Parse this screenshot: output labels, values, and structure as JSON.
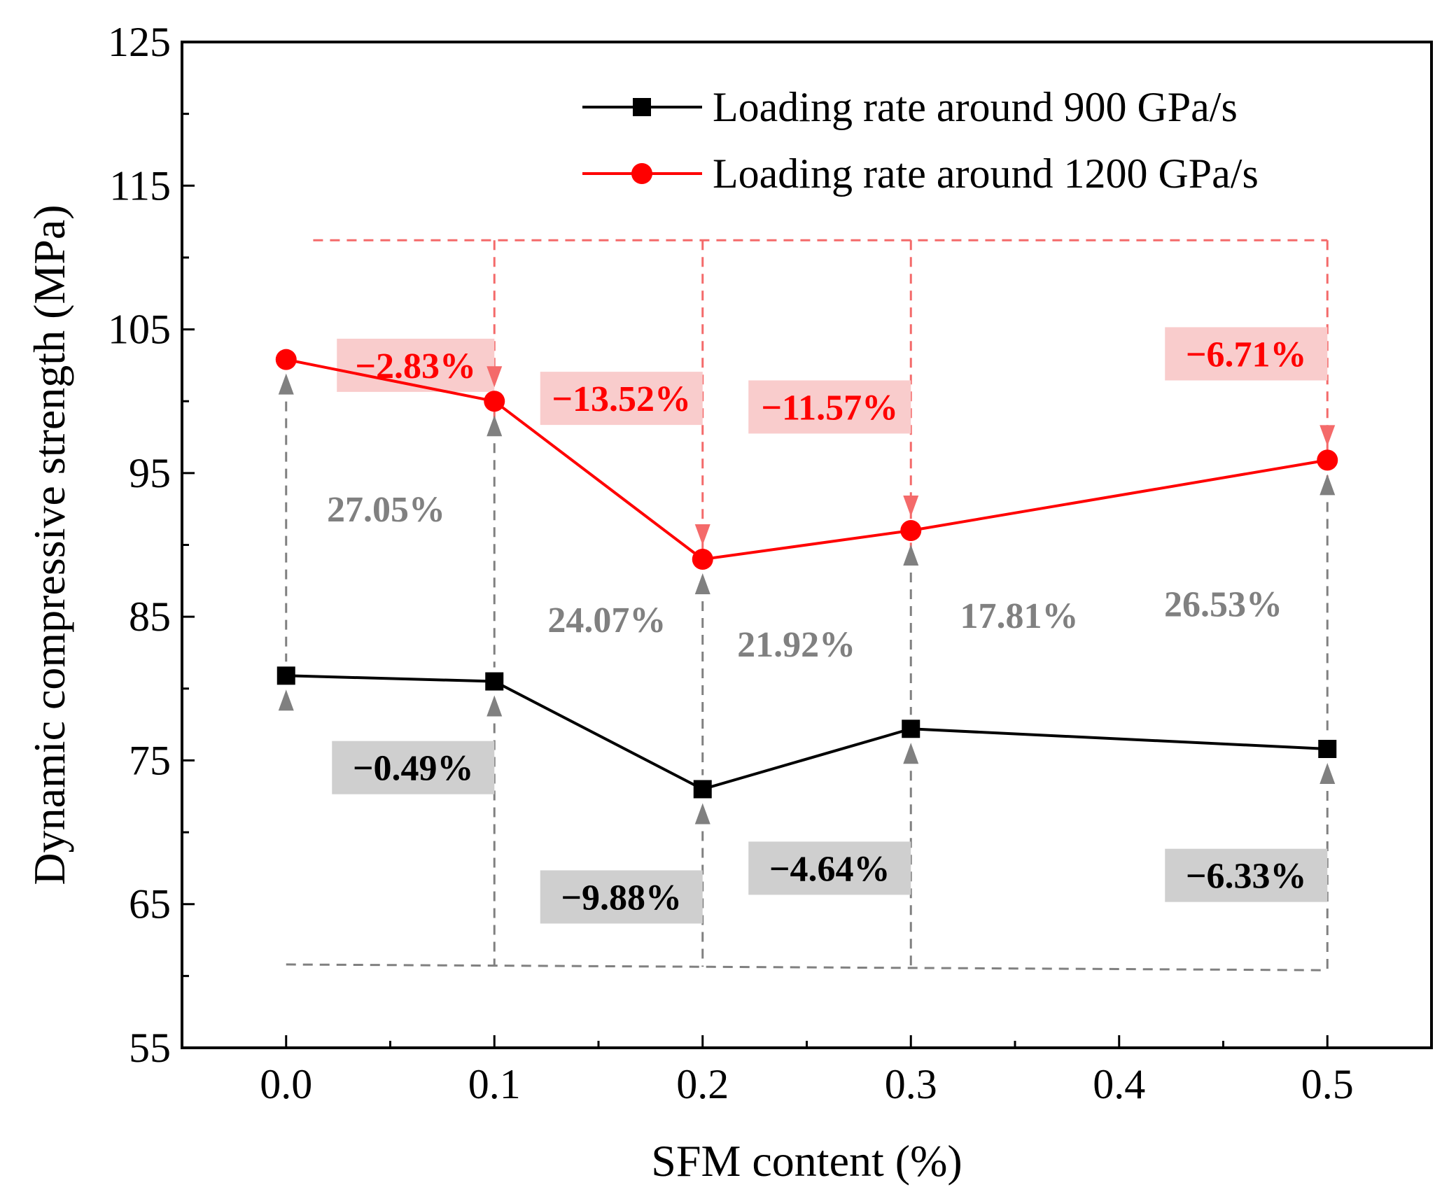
{
  "chart_data": {
    "type": "line",
    "title": "",
    "xlabel": "SFM content (%)",
    "ylabel": "Dynamic compressive strength (MPa)",
    "xlim": [
      -0.05,
      0.55
    ],
    "ylim": [
      55,
      125
    ],
    "xticks": [
      "0.0",
      "0.1",
      "0.2",
      "0.3",
      "0.4",
      "0.5"
    ],
    "yticks": [
      "55",
      "65",
      "75",
      "85",
      "95",
      "105",
      "115",
      "125"
    ],
    "legend_position": "top-right",
    "series": [
      {
        "name": "Loading rate around 900 GPa/s",
        "color": "#000000",
        "marker": "square",
        "x": [
          0.0,
          0.1,
          0.2,
          0.3,
          0.5
        ],
        "values": [
          80.9,
          80.5,
          73.0,
          77.2,
          75.8
        ]
      },
      {
        "name": "Loading rate around 1200 GPa/s",
        "color": "#ff0000",
        "marker": "circle",
        "x": [
          0.0,
          0.1,
          0.2,
          0.3,
          0.5
        ],
        "values": [
          102.9,
          100.0,
          89.0,
          91.0,
          95.9
        ]
      }
    ],
    "annotations": {
      "red_changes": [
        {
          "text": "−2.83%",
          "x_from": 0.0,
          "x_to": 0.1
        },
        {
          "text": "−13.52%",
          "x_from": 0.1,
          "x_to": 0.2
        },
        {
          "text": "−11.57%",
          "x_from": 0.2,
          "x_to": 0.3
        },
        {
          "text": "−6.71%",
          "x_from": 0.3,
          "x_to": 0.5
        }
      ],
      "black_changes": [
        {
          "text": "−0.49%",
          "x_from": 0.0,
          "x_to": 0.1
        },
        {
          "text": "−9.88%",
          "x_from": 0.1,
          "x_to": 0.2
        },
        {
          "text": "−4.64%",
          "x_from": 0.2,
          "x_to": 0.3
        },
        {
          "text": "−6.33%",
          "x_from": 0.3,
          "x_to": 0.5
        }
      ],
      "increase": [
        {
          "text": "27.05%",
          "x": 0.0
        },
        {
          "text": "24.07%",
          "x": 0.1
        },
        {
          "text": "21.92%",
          "x": 0.2
        },
        {
          "text": "17.81%",
          "x": 0.3
        },
        {
          "text": "26.53%",
          "x": 0.5
        }
      ]
    },
    "colors": {
      "red_box": "#f9cccc",
      "gray_box": "#cfcfcf",
      "gray_text": "#808080",
      "red_dash": "#f46a6a",
      "gray_dash": "#808080"
    }
  }
}
